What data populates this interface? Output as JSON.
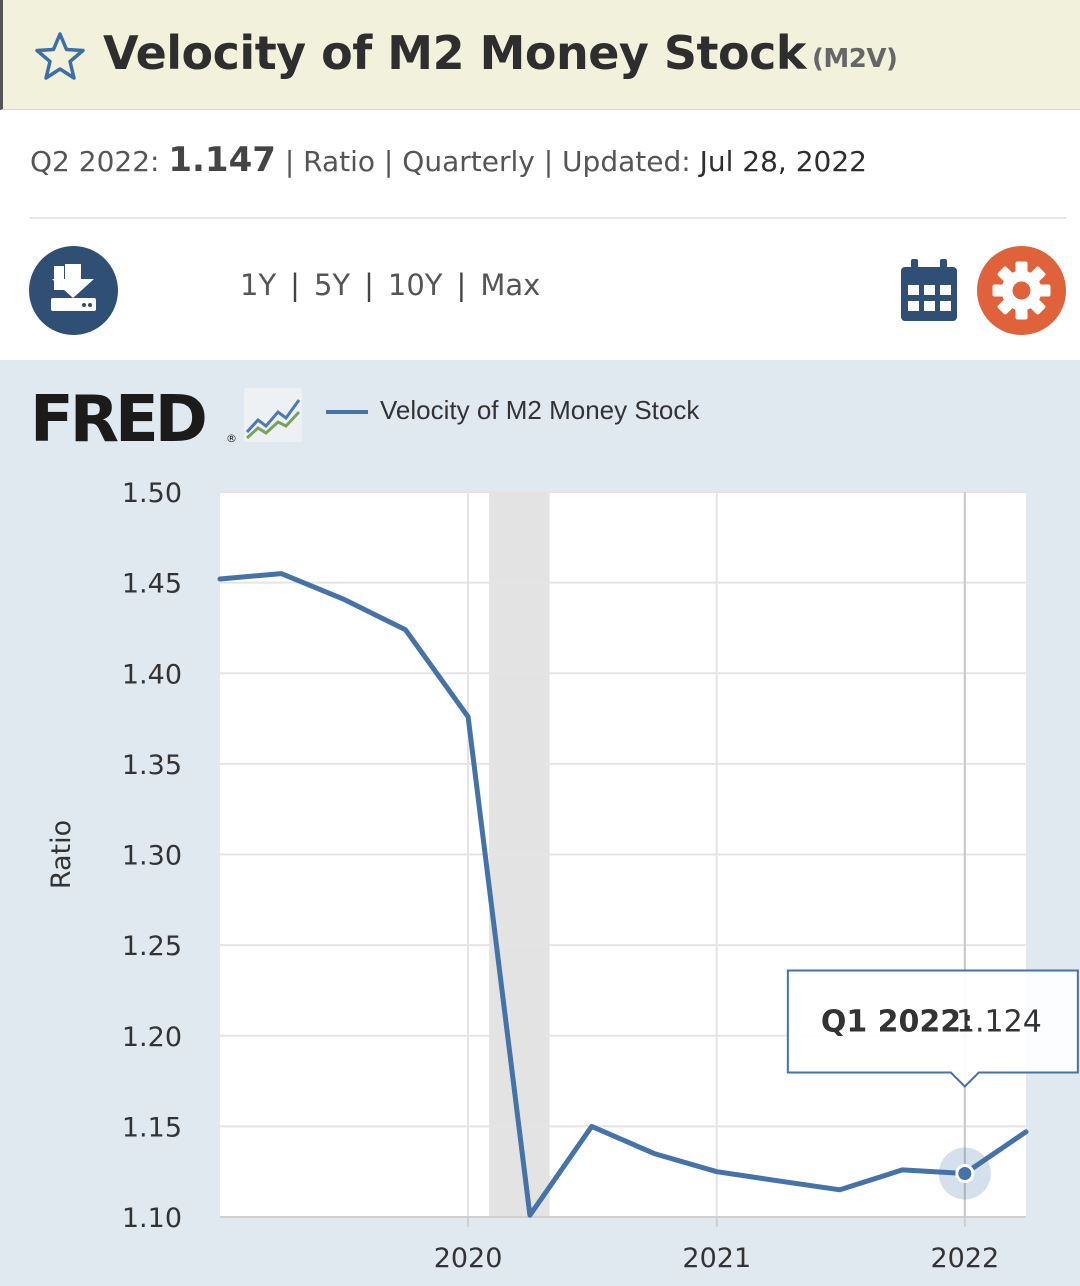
{
  "header": {
    "title": "Velocity of M2 Money Stock",
    "series_id": "(M2V)"
  },
  "meta": {
    "period_label": "Q2 2022:",
    "latest_value": "1.147",
    "units": "| Ratio |",
    "frequency": "Quarterly",
    "updated_label": "| Updated:",
    "updated_date": "Jul 28, 2022"
  },
  "toolbar": {
    "ranges": [
      "1Y",
      "5Y",
      "10Y",
      "Max"
    ],
    "separator": "|"
  },
  "icons": {
    "favorite": "star-icon",
    "download": "download-icon",
    "calendar": "calendar-icon",
    "settings": "gear-icon",
    "logo_graph": "chart-line-icon"
  },
  "logo": {
    "text": "FRED",
    "reg": "®"
  },
  "colors": {
    "series": "#4572a7",
    "settings_button": "#e0623b",
    "download_button": "#2f4f74",
    "recession_band": "#e3e3e3",
    "panel_background": "#e1e9f0"
  },
  "chart_data": {
    "type": "line",
    "ylabel": "Ratio",
    "ylim": [
      1.1,
      1.5
    ],
    "yticks": [
      "1.10",
      "1.15",
      "1.20",
      "1.25",
      "1.30",
      "1.35",
      "1.40",
      "1.45",
      "1.50"
    ],
    "xticks": [
      "2020",
      "2021",
      "2022"
    ],
    "grid": true,
    "legend": "top-left",
    "series": [
      {
        "name": "Velocity of M2 Money Stock",
        "x": [
          "2019-01-01",
          "2019-04-01",
          "2019-07-01",
          "2019-10-01",
          "2020-01-01",
          "2020-04-01",
          "2020-07-01",
          "2020-10-01",
          "2021-01-01",
          "2021-04-01",
          "2021-07-01",
          "2021-10-01",
          "2022-01-01",
          "2022-04-01"
        ],
        "values": [
          1.452,
          1.455,
          1.441,
          1.424,
          1.376,
          1.101,
          1.15,
          1.135,
          1.125,
          1.12,
          1.115,
          1.126,
          1.124,
          1.147
        ]
      }
    ],
    "recession_bands": [
      [
        "2020-02-01",
        "2020-04-30"
      ]
    ],
    "tooltip": {
      "label": "Q1 2022:",
      "value": "1.124",
      "x": "2022-01-01"
    }
  }
}
